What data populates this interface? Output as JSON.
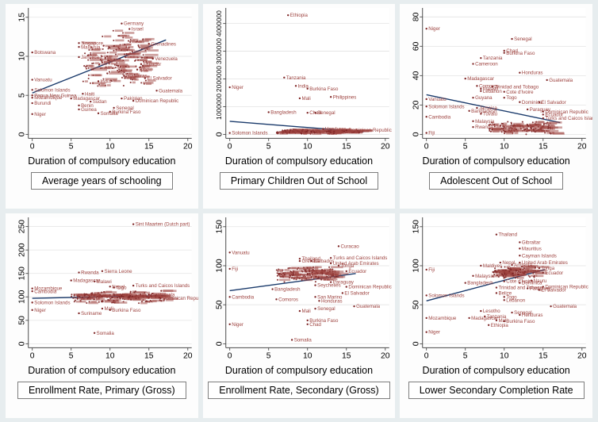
{
  "figure": {
    "x_label": "Duration of compulsory education",
    "x_ticks": [
      0,
      5,
      10,
      15,
      20
    ],
    "x_max": 20,
    "colors": {
      "marker": "#7f2626",
      "point_label": "#9e4440",
      "trend": "#1a3a6b",
      "grid": "#e3e3e3",
      "axis": "#4a4a4a",
      "tick_text": "#000000",
      "panel_bg": "#fdfdfd",
      "figure_bg": "#e7edef"
    }
  },
  "chart_data": [
    {
      "type": "scatter",
      "subtitle": "Average years of schooling",
      "xlabel": "Duration of compulsory education",
      "y_ticks": [
        0,
        5,
        10,
        15
      ],
      "y_max": 15.8,
      "trend": {
        "x1": 0,
        "y1": 5.3,
        "x2": 17.2,
        "y2": 12.1
      },
      "cluster": {
        "count": 155,
        "x_min": 6.5,
        "x_max": 14.8,
        "y_min": 5.8,
        "y_max": 13.6,
        "seed": 11
      },
      "points": [
        {
          "label": "Botswana",
          "x": 0,
          "y": 10.5
        },
        {
          "label": "Vanuatu",
          "x": 0,
          "y": 7.0
        },
        {
          "label": "Solomon Islands",
          "x": 0,
          "y": 5.7
        },
        {
          "label": "Papua New Guinea",
          "x": 0,
          "y": 5.0
        },
        {
          "label": "Mozambique",
          "x": 0,
          "y": 4.7
        },
        {
          "label": "Burundi",
          "x": 0,
          "y": 4.0
        },
        {
          "label": "Niger",
          "x": 0,
          "y": 2.6
        },
        {
          "label": "Madagascar",
          "x": 5,
          "y": 4.6
        },
        {
          "label": "Singapore",
          "x": 6,
          "y": 11.7
        },
        {
          "label": "Malaysia",
          "x": 6,
          "y": 11.2
        },
        {
          "label": "Jamaica",
          "x": 6,
          "y": 9.9
        },
        {
          "label": "Haiti",
          "x": 6.5,
          "y": 5.2
        },
        {
          "label": "Benin",
          "x": 6,
          "y": 3.7
        },
        {
          "label": "Guinea",
          "x": 6,
          "y": 3.2
        },
        {
          "label": "Sudan",
          "x": 7.5,
          "y": 4.2
        },
        {
          "label": "Somalia",
          "x": 8.5,
          "y": 2.7
        },
        {
          "label": "India",
          "x": 8.5,
          "y": 6.8
        },
        {
          "label": "Senegal",
          "x": 10.5,
          "y": 3.4
        },
        {
          "label": "Burkina Faso",
          "x": 10,
          "y": 2.9
        },
        {
          "label": "Germany",
          "x": 11.5,
          "y": 14.2
        },
        {
          "label": "Israel",
          "x": 12.5,
          "y": 13.5
        },
        {
          "label": "Honduras",
          "x": 11.8,
          "y": 7.5
        },
        {
          "label": "Pakistan",
          "x": 11.5,
          "y": 4.6
        },
        {
          "label": "Dominican Republic",
          "x": 13,
          "y": 4.3
        },
        {
          "label": "Brazil",
          "x": 13.5,
          "y": 8.3
        },
        {
          "label": "Ecuador",
          "x": 14,
          "y": 9.0
        },
        {
          "label": "Venezuela",
          "x": 15.5,
          "y": 9.7
        },
        {
          "label": "Grenadines",
          "x": 15,
          "y": 11.6
        },
        {
          "label": "El Salvador",
          "x": 14.5,
          "y": 7.2
        },
        {
          "label": "Guatemala",
          "x": 16,
          "y": 5.6
        }
      ]
    },
    {
      "type": "scatter",
      "subtitle": "Primary Children Out of School",
      "xlabel": "Duration of compulsory education",
      "y_ticks": [
        0,
        1000000,
        2000000,
        3000000,
        4000000
      ],
      "y_max": 4450000,
      "trend": {
        "x1": 0,
        "y1": 470000,
        "x2": 17.2,
        "y2": 90000
      },
      "cluster": {
        "count": 150,
        "x_min": 6,
        "x_max": 17,
        "y_min": 5000,
        "y_max": 200000,
        "seed": 22
      },
      "points": [
        {
          "label": "Ethiopia",
          "x": 7.5,
          "y": 4300000
        },
        {
          "label": "Tanzania",
          "x": 7,
          "y": 2050000
        },
        {
          "label": "Niger",
          "x": 0,
          "y": 1700000
        },
        {
          "label": "India",
          "x": 8.5,
          "y": 1750000
        },
        {
          "label": "Burkina Faso",
          "x": 10,
          "y": 1650000
        },
        {
          "label": "Mali",
          "x": 9,
          "y": 1300000
        },
        {
          "label": "Philippines",
          "x": 13,
          "y": 1350000
        },
        {
          "label": "Bangladesh",
          "x": 5,
          "y": 800000
        },
        {
          "label": "Chad",
          "x": 10,
          "y": 780000
        },
        {
          "label": "Senegal",
          "x": 11,
          "y": 780000
        },
        {
          "label": "Honduras",
          "x": 12,
          "y": 200000
        },
        {
          "label": "Dominican Republic",
          "x": 15,
          "y": 150000
        },
        {
          "label": "Solomon Islands",
          "x": 0,
          "y": 50000
        }
      ]
    },
    {
      "type": "scatter",
      "subtitle": "Adolescent Out of School",
      "xlabel": "Duration of compulsory education",
      "y_ticks": [
        0,
        20,
        40,
        60,
        80
      ],
      "y_max": 84,
      "trend": {
        "x1": 0,
        "y1": 27,
        "x2": 17.2,
        "y2": 8
      },
      "cluster": {
        "count": 110,
        "x_min": 8,
        "x_max": 16,
        "y_min": -1,
        "y_max": 9,
        "seed": 33
      },
      "points": [
        {
          "label": "Niger",
          "x": 0,
          "y": 72
        },
        {
          "label": "Senegal",
          "x": 11,
          "y": 65
        },
        {
          "label": "Chad",
          "x": 10,
          "y": 57
        },
        {
          "label": "Burkina Faso",
          "x": 10,
          "y": 55.5
        },
        {
          "label": "Tanzania",
          "x": 7,
          "y": 52
        },
        {
          "label": "Cameroon",
          "x": 6,
          "y": 48
        },
        {
          "label": "Honduras",
          "x": 12,
          "y": 42
        },
        {
          "label": "Madagascar",
          "x": 5,
          "y": 38
        },
        {
          "label": "Guatemala",
          "x": 15.5,
          "y": 37
        },
        {
          "label": "Comoros",
          "x": 6.5,
          "y": 33
        },
        {
          "label": "Trinidad and Tobago",
          "x": 8.5,
          "y": 32.5
        },
        {
          "label": "Malawi",
          "x": 7,
          "y": 31
        },
        {
          "label": "Lebanon",
          "x": 7,
          "y": 29.5
        },
        {
          "label": "Cote d'Ivoire",
          "x": 10,
          "y": 29
        },
        {
          "label": "Guyana",
          "x": 6,
          "y": 25
        },
        {
          "label": "Togo",
          "x": 10,
          "y": 25
        },
        {
          "label": "Vanuatu",
          "x": 0,
          "y": 24
        },
        {
          "label": "Dominica",
          "x": 12,
          "y": 22
        },
        {
          "label": "El Salvador",
          "x": 14.5,
          "y": 22
        },
        {
          "label": "Solomon Islands",
          "x": 0,
          "y": 19
        },
        {
          "label": "Jamaica",
          "x": 6.5,
          "y": 18
        },
        {
          "label": "Bangladesh",
          "x": 5.5,
          "y": 16
        },
        {
          "label": "Paraguay",
          "x": 13,
          "y": 17
        },
        {
          "label": "Dominican Republic",
          "x": 15,
          "y": 15.5
        },
        {
          "label": "Tuvalu",
          "x": 7,
          "y": 14
        },
        {
          "label": "Ecuador",
          "x": 15,
          "y": 13.5
        },
        {
          "label": "Cambodia",
          "x": 0,
          "y": 12
        },
        {
          "label": "Turks and Caicos Islands",
          "x": 15,
          "y": 11
        },
        {
          "label": "Malaysia",
          "x": 6,
          "y": 9
        },
        {
          "label": "Rwanda",
          "x": 6,
          "y": 5
        },
        {
          "label": "Fiji",
          "x": 0,
          "y": 1
        }
      ]
    },
    {
      "type": "scatter",
      "subtitle": "Enrollment Rate, Primary (Gross)",
      "xlabel": "Duration of compulsory education",
      "y_ticks": [
        0,
        50,
        100,
        150,
        200,
        250
      ],
      "y_max": 263,
      "trend": {
        "x1": 0,
        "y1": 97,
        "x2": 17.2,
        "y2": 103
      },
      "cluster": {
        "count": 160,
        "x_min": 5,
        "x_max": 17,
        "y_min": 86,
        "y_max": 114,
        "seed": 44
      },
      "points": [
        {
          "label": "Sint Maarten (Dutch part)",
          "x": 13,
          "y": 255
        },
        {
          "label": "Sierra Leone",
          "x": 9,
          "y": 155
        },
        {
          "label": "Rwanda",
          "x": 6,
          "y": 152
        },
        {
          "label": "Madagascar",
          "x": 5,
          "y": 135
        },
        {
          "label": "Malawi",
          "x": 8,
          "y": 133
        },
        {
          "label": "Turks and Caicos Islands",
          "x": 13,
          "y": 124
        },
        {
          "label": "Nepal",
          "x": 10,
          "y": 122
        },
        {
          "label": "Togo",
          "x": 10.5,
          "y": 120
        },
        {
          "label": "Mozambique",
          "x": 0,
          "y": 118
        },
        {
          "label": "Cambodia",
          "x": 0,
          "y": 112
        },
        {
          "label": "Guatemala",
          "x": 15,
          "y": 105
        },
        {
          "label": "Dominican Republic",
          "x": 16.5,
          "y": 97
        },
        {
          "label": "Solomon Islands",
          "x": 0,
          "y": 88
        },
        {
          "label": "Mali",
          "x": 9,
          "y": 75
        },
        {
          "label": "Burkina Faso",
          "x": 10,
          "y": 72
        },
        {
          "label": "Niger",
          "x": 0,
          "y": 72
        },
        {
          "label": "Suriname",
          "x": 6,
          "y": 65
        },
        {
          "label": "Somalia",
          "x": 8,
          "y": 23
        }
      ]
    },
    {
      "type": "scatter",
      "subtitle": "Enrollment Rate, Secondary (Gross)",
      "xlabel": "Duration of compulsory education",
      "y_ticks": [
        0,
        50,
        100,
        150
      ],
      "y_max": 158,
      "trend": {
        "x1": 0,
        "y1": 68,
        "x2": 16.2,
        "y2": 90
      },
      "cluster": {
        "count": 120,
        "x_min": 6,
        "x_max": 14,
        "y_min": 78,
        "y_max": 100,
        "seed": 55
      },
      "points": [
        {
          "label": "Curacao",
          "x": 14,
          "y": 125
        },
        {
          "label": "Vanuatu",
          "x": 0,
          "y": 117
        },
        {
          "label": "Thailand",
          "x": 9,
          "y": 109
        },
        {
          "label": "Turks and Caicos Islands",
          "x": 13,
          "y": 110
        },
        {
          "label": "Grenada",
          "x": 9,
          "y": 106
        },
        {
          "label": "Barbados",
          "x": 10.5,
          "y": 106
        },
        {
          "label": "United Arab Emirates",
          "x": 13,
          "y": 103
        },
        {
          "label": "Tonga",
          "x": 14,
          "y": 100
        },
        {
          "label": "Fiji",
          "x": 0,
          "y": 96
        },
        {
          "label": "Ecuador",
          "x": 15,
          "y": 93
        },
        {
          "label": "Paraguay",
          "x": 13,
          "y": 79
        },
        {
          "label": "Seychelles",
          "x": 11,
          "y": 75
        },
        {
          "label": "Dominican Republic",
          "x": 15,
          "y": 73
        },
        {
          "label": "Bangladesh",
          "x": 5.5,
          "y": 70
        },
        {
          "label": "El Salvador",
          "x": 14.5,
          "y": 65
        },
        {
          "label": "Cambodia",
          "x": 0,
          "y": 60
        },
        {
          "label": "San Marino",
          "x": 11,
          "y": 60
        },
        {
          "label": "Comoros",
          "x": 6,
          "y": 57
        },
        {
          "label": "Honduras",
          "x": 11.5,
          "y": 55
        },
        {
          "label": "Guatemala",
          "x": 16,
          "y": 48
        },
        {
          "label": "Senegal",
          "x": 11,
          "y": 45
        },
        {
          "label": "Mali",
          "x": 9,
          "y": 42
        },
        {
          "label": "Burkina Faso",
          "x": 10,
          "y": 30
        },
        {
          "label": "Chad",
          "x": 10,
          "y": 25
        },
        {
          "label": "Niger",
          "x": 0,
          "y": 25
        },
        {
          "label": "Somalia",
          "x": 8,
          "y": 5
        }
      ]
    },
    {
      "type": "scatter",
      "subtitle": "Lower Secondary Completion Rate",
      "xlabel": "Duration of compulsory education",
      "y_ticks": [
        0,
        50,
        100,
        150
      ],
      "y_max": 158,
      "trend": {
        "x1": 0,
        "y1": 55,
        "x2": 15.2,
        "y2": 95
      },
      "cluster": {
        "count": 95,
        "x_min": 8.5,
        "x_max": 14,
        "y_min": 84,
        "y_max": 100,
        "seed": 66
      },
      "points": [
        {
          "label": "Thailand",
          "x": 9,
          "y": 140
        },
        {
          "label": "Gibraltar",
          "x": 12,
          "y": 130
        },
        {
          "label": "Mauritius",
          "x": 12,
          "y": 122
        },
        {
          "label": "Cayman Islands",
          "x": 12,
          "y": 113
        },
        {
          "label": "Nepal",
          "x": 9.5,
          "y": 104
        },
        {
          "label": "United Arab Emirates",
          "x": 12,
          "y": 104
        },
        {
          "label": "Armenia",
          "x": 11,
          "y": 101
        },
        {
          "label": "Maldives",
          "x": 7,
          "y": 100
        },
        {
          "label": "Tonga",
          "x": 14.5,
          "y": 97
        },
        {
          "label": "Fiji",
          "x": 0,
          "y": 95
        },
        {
          "label": "Ecuador",
          "x": 15,
          "y": 91
        },
        {
          "label": "Malaysia",
          "x": 6,
          "y": 87
        },
        {
          "label": "Nauru",
          "x": 13.5,
          "y": 81
        },
        {
          "label": "Cote d'Ivoire",
          "x": 10,
          "y": 80
        },
        {
          "label": "Bangladesh",
          "x": 5,
          "y": 78
        },
        {
          "label": "Dominica",
          "x": 12,
          "y": 78
        },
        {
          "label": "Dominican Republic",
          "x": 15,
          "y": 73
        },
        {
          "label": "Trinidad and Tobago",
          "x": 9,
          "y": 72
        },
        {
          "label": "Paraguay",
          "x": 13,
          "y": 71
        },
        {
          "label": "El Salvador",
          "x": 14.5,
          "y": 69
        },
        {
          "label": "Belize",
          "x": 9,
          "y": 65
        },
        {
          "label": "Solomon Islands",
          "x": 0,
          "y": 62
        },
        {
          "label": "Togo",
          "x": 10,
          "y": 60
        },
        {
          "label": "Lebanon",
          "x": 10,
          "y": 56
        },
        {
          "label": "Guatemala",
          "x": 16,
          "y": 48
        },
        {
          "label": "Lesotho",
          "x": 7,
          "y": 42
        },
        {
          "label": "Senegal",
          "x": 11,
          "y": 40
        },
        {
          "label": "Honduras",
          "x": 12,
          "y": 37
        },
        {
          "label": "Tanzania",
          "x": 7.5,
          "y": 35
        },
        {
          "label": "Madagascar",
          "x": 5.5,
          "y": 33
        },
        {
          "label": "Mozambique",
          "x": 0,
          "y": 33
        },
        {
          "label": "Mali",
          "x": 9,
          "y": 30
        },
        {
          "label": "Burkina Faso",
          "x": 10,
          "y": 29
        },
        {
          "label": "Ethiopia",
          "x": 8,
          "y": 24
        },
        {
          "label": "Niger",
          "x": 0,
          "y": 15
        }
      ]
    }
  ]
}
